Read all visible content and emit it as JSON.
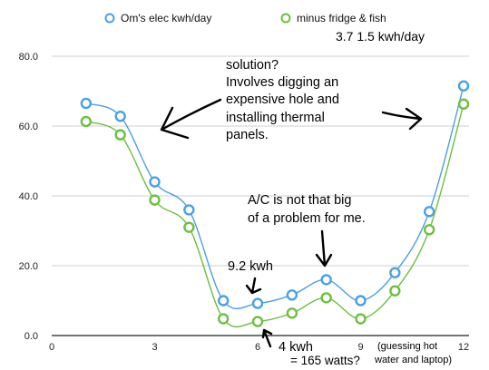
{
  "chart_data": {
    "type": "line",
    "x": [
      1,
      2,
      3,
      4,
      5,
      6,
      7,
      8,
      9,
      10,
      11,
      12
    ],
    "series": [
      {
        "name": "Om's elec kwh/day",
        "color": "#4a9fe6",
        "values": [
          66.5,
          62.8,
          44.0,
          36.0,
          10.0,
          9.2,
          11.6,
          16.0,
          10.0,
          18.0,
          35.5,
          71.5
        ]
      },
      {
        "name": "minus fridge & fish",
        "color": "#6cbf3f",
        "values": [
          61.3,
          57.5,
          38.8,
          31.0,
          4.8,
          4.0,
          6.4,
          10.8,
          4.8,
          12.8,
          30.3,
          66.3
        ]
      }
    ],
    "xticks": [
      "0",
      "3",
      "6",
      "9",
      "12"
    ],
    "yticks": [
      "0.0",
      "20.0",
      "40.0",
      "60.0",
      "80.0"
    ],
    "xlim": [
      0,
      12
    ],
    "ylim": [
      0,
      80
    ],
    "grid": "horizontal",
    "legend": "top"
  },
  "annotations": {
    "legend_values": "3.7   1.5 kwh/day",
    "solution_lines": [
      "solution?",
      "Involves digging an",
      "expensive hole and",
      "installing thermal",
      "panels."
    ],
    "ac_lines": [
      "A/C is not that big",
      "of a problem for me."
    ],
    "kwh_label": "9.2 kwh",
    "low_kwh": "4 kwh",
    "watts": "= 165 watts?",
    "guess_line1": "(guessing hot",
    "guess_line2": "water and laptop)"
  }
}
